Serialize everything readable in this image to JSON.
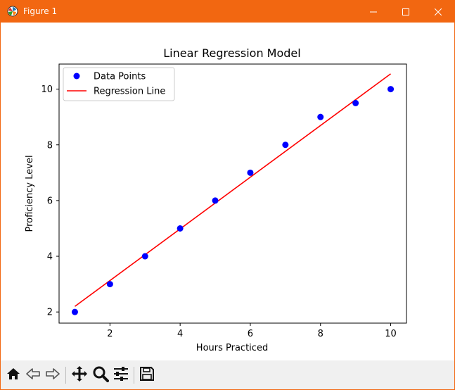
{
  "window": {
    "title": "Figure 1"
  },
  "toolbar": {
    "buttons": [
      {
        "icon": "home-icon"
      },
      {
        "icon": "back-arrow-icon"
      },
      {
        "icon": "forward-arrow-icon"
      },
      {
        "icon": "pan-icon"
      },
      {
        "icon": "zoom-icon"
      },
      {
        "icon": "configure-subplots-icon"
      },
      {
        "icon": "save-icon"
      }
    ]
  },
  "colors": {
    "titlebar": "#f26711",
    "points": "#0000ff",
    "line": "#ff0000",
    "toolbar_bg": "#f0f0f0"
  },
  "chart_data": {
    "type": "scatter",
    "title": "Linear Regression Model",
    "xlabel": "Hours Practiced",
    "ylabel": "Proficiency Level",
    "xlim": [
      0.55,
      10.45
    ],
    "ylim": [
      1.6,
      10.9
    ],
    "xticks": [
      2,
      4,
      6,
      8,
      10
    ],
    "yticks": [
      2,
      4,
      6,
      8,
      10
    ],
    "grid": false,
    "legend": "upper-left",
    "series": [
      {
        "name": "Data Points",
        "kind": "scatter",
        "color": "#0000ff",
        "x": [
          1,
          2,
          3,
          4,
          5,
          6,
          7,
          8,
          9,
          10
        ],
        "y": [
          2,
          3,
          4,
          5,
          6,
          7,
          8,
          9,
          9.5,
          10
        ]
      },
      {
        "name": "Regression Line",
        "kind": "line",
        "color": "#ff0000",
        "x": [
          1,
          10
        ],
        "y": [
          2.2,
          10.55
        ]
      }
    ]
  }
}
